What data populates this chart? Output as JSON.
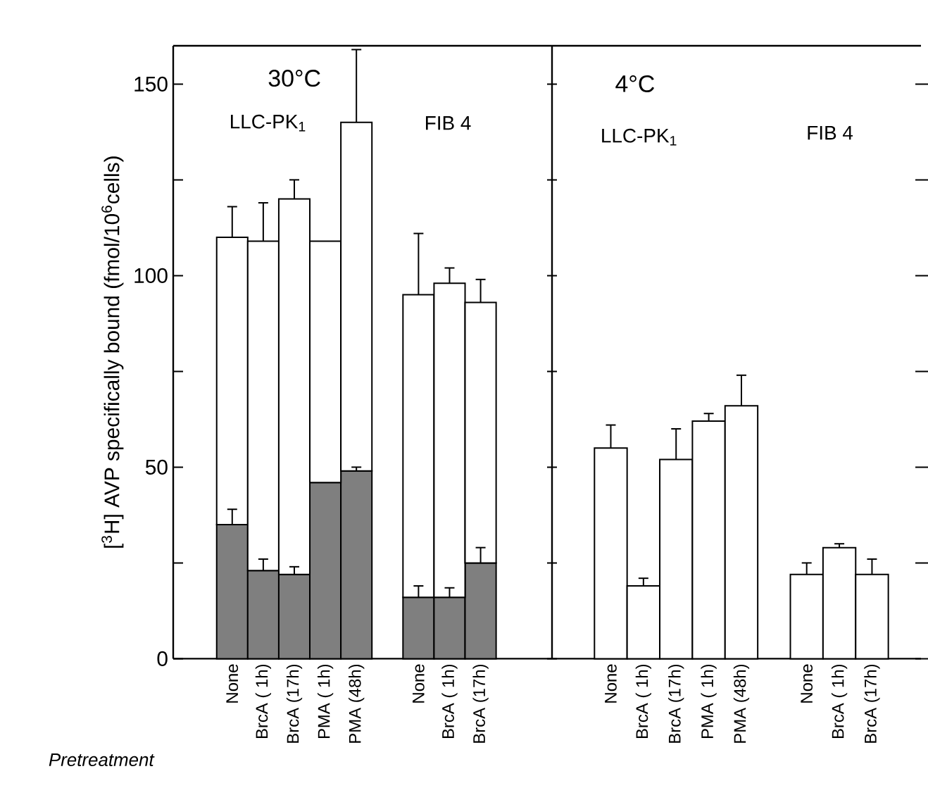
{
  "chart_data": [
    {
      "type": "bar",
      "stacked": true,
      "ylabel": "[$^{3}$H] AVP specifically bound (fmol/10$^{6}$cells)",
      "categories": [
        "None",
        "BrcA ( 1h)",
        "BrcA (17h)",
        "PMA ( 1h)",
        "PMA (48h)",
        null,
        "None",
        "BrcA ( 1h)",
        "BrcA (17h)"
      ],
      "series": [
        {
          "color": "#7f7f7f",
          "values": [
            35,
            23,
            22,
            46,
            49,
            null,
            16,
            16,
            25
          ],
          "errors": [
            4,
            3,
            2,
            null,
            1,
            null,
            3,
            2.5,
            4
          ]
        },
        {
          "color": "#ffffff",
          "values": [
            75,
            86,
            98,
            63,
            91,
            null,
            79,
            82,
            68
          ],
          "errors": [
            8,
            10,
            5,
            null,
            19,
            null,
            16,
            4,
            6
          ]
        }
      ],
      "ylim": [
        0,
        160
      ],
      "yticks": [
        0,
        50,
        100,
        150
      ],
      "annotations": [
        "30°C",
        "LLC-PK$_{1}$",
        "FIB 4",
        "Pretreatment"
      ]
    },
    {
      "type": "bar",
      "categories": [
        "None",
        "BrcA ( 1h)",
        "BrcA (17h)",
        "PMA ( 1h)",
        "PMA (48h)",
        null,
        "None",
        "BrcA ( 1h)",
        "BrcA (17h)"
      ],
      "series": [
        {
          "color": "#ffffff",
          "values": [
            55,
            19,
            52,
            62,
            66,
            null,
            22,
            29,
            22
          ],
          "errors": [
            6,
            2,
            8,
            2,
            8,
            null,
            3,
            1,
            4
          ]
        }
      ],
      "ylim": [
        0,
        160
      ],
      "yticks": [
        0,
        50,
        100,
        150
      ],
      "tick_labels": "x",
      "annotations": [
        "4°C",
        "LLC-PK$_{1}$",
        "FIB 4"
      ]
    }
  ]
}
